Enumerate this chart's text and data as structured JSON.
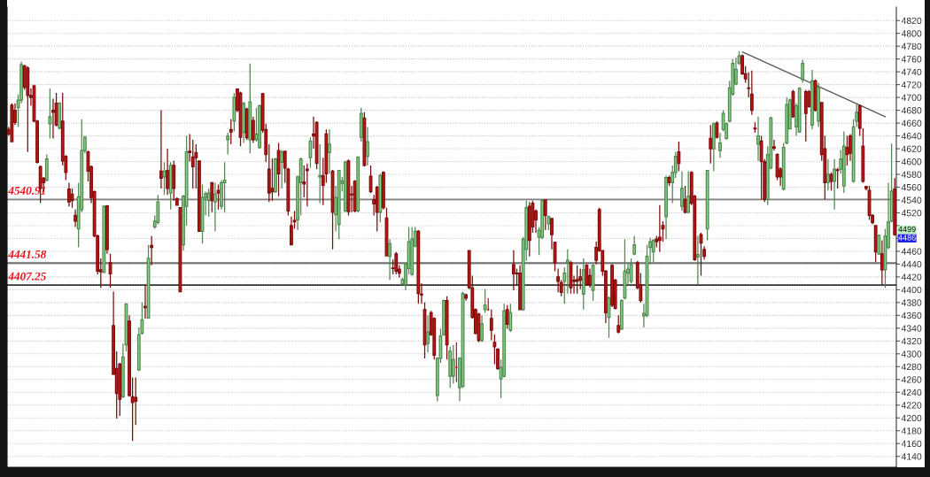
{
  "chart_data": {
    "type": "candlestick",
    "categories": [
      null,
      null,
      null,
      null,
      null,
      null,
      null,
      null,
      null,
      null,
      null,
      null,
      null,
      null,
      null,
      null,
      null,
      null,
      null,
      null,
      null,
      null,
      null,
      null,
      null,
      null,
      null,
      null,
      null,
      null,
      null,
      null,
      null,
      null,
      null,
      null,
      null,
      null,
      null,
      null,
      null,
      null,
      null,
      null,
      null,
      null,
      null,
      null,
      null,
      null,
      null,
      null,
      null,
      null,
      null,
      null,
      null,
      null,
      null,
      null,
      null,
      null,
      null,
      null,
      null,
      null,
      null,
      null,
      null,
      null,
      null,
      null,
      null,
      null,
      null,
      null,
      null,
      null,
      null,
      null,
      null,
      null,
      null,
      null,
      null,
      null,
      null,
      null,
      null,
      null,
      null,
      null,
      null,
      null,
      null,
      null,
      null,
      null,
      null,
      null,
      null,
      null,
      null,
      null,
      null,
      null,
      null,
      null,
      null,
      null,
      null,
      null,
      null,
      null,
      null,
      null,
      null,
      null,
      null,
      null,
      null,
      null,
      null,
      null,
      null,
      null,
      null,
      null,
      null,
      null,
      null,
      null,
      null,
      null,
      null,
      null,
      null,
      null,
      null,
      null,
      null,
      null,
      null,
      null,
      null,
      null,
      null,
      null,
      null,
      null,
      null,
      null,
      null,
      null,
      null,
      null,
      null,
      null,
      null,
      null,
      null,
      null,
      null,
      null,
      null,
      null,
      null,
      null,
      null,
      null,
      null,
      null,
      null,
      null,
      null,
      null,
      null,
      null,
      null,
      null,
      null,
      null,
      null,
      null,
      null,
      null,
      null,
      null,
      null,
      null,
      null,
      null,
      null,
      null,
      null,
      null,
      null,
      null,
      null,
      null,
      null,
      null,
      null,
      null,
      null,
      null,
      null,
      null,
      null,
      null,
      null,
      null,
      null,
      null,
      null,
      null,
      null,
      null,
      null,
      null,
      null,
      null,
      null,
      null,
      null,
      null,
      null,
      null,
      null,
      null,
      null,
      null,
      null,
      null,
      null,
      null,
      null,
      null,
      null,
      null,
      null,
      null,
      null,
      null,
      null,
      null,
      null,
      null,
      null,
      null,
      null,
      null,
      null,
      null,
      null,
      null,
      null,
      null,
      null,
      null,
      null,
      null,
      null,
      null,
      null,
      null,
      null,
      null,
      null,
      null,
      null,
      null,
      null,
      null,
      null,
      null,
      null,
      null,
      null,
      null
    ],
    "ohlc": [
      [
        4650,
        4654,
        4640,
        4643
      ],
      [
        4688,
        4691,
        4630,
        4631
      ],
      [
        4680,
        4691,
        4657,
        4661
      ],
      [
        4684,
        4705,
        4654,
        4696
      ],
      [
        4696,
        4756,
        4691,
        4751
      ],
      [
        4749,
        4751,
        4712,
        4716
      ],
      [
        4746,
        4749,
        4615,
        4703
      ],
      [
        4703,
        4714,
        4687,
        4700
      ],
      [
        4718,
        4720,
        4661,
        4663
      ],
      [
        4663,
        4665,
        4597,
        4599
      ],
      [
        4592,
        4594,
        4535,
        4558
      ],
      [
        4574,
        4576,
        4553,
        4567
      ],
      [
        4571,
        4611,
        4569,
        4604
      ],
      [
        4659,
        4714,
        4636,
        4670
      ],
      [
        4680,
        4698,
        4636,
        4677
      ],
      [
        4691,
        4707,
        4655,
        4657
      ],
      [
        4652,
        4693,
        4650,
        4691
      ],
      [
        4663,
        4707,
        4594,
        4601
      ],
      [
        4608,
        4610,
        4571,
        4583
      ],
      [
        4557,
        4567,
        4530,
        4537
      ],
      [
        4549,
        4558,
        4528,
        4539
      ],
      [
        4516,
        4525,
        4498,
        4507
      ],
      [
        4495,
        4567,
        4466,
        4545
      ],
      [
        4525,
        4666,
        4521,
        4617
      ],
      [
        4617,
        4640,
        4613,
        4638
      ],
      [
        4615,
        4617,
        4569,
        4585
      ],
      [
        4592,
        4594,
        4535,
        4544
      ],
      [
        4553,
        4555,
        4482,
        4484
      ],
      [
        4484,
        4486,
        4424,
        4429
      ],
      [
        4431,
        4449,
        4403,
        4428
      ],
      [
        4427,
        4532,
        4426,
        4530
      ],
      [
        4531,
        4532,
        4456,
        4463
      ],
      [
        4442,
        4456,
        4403,
        4425
      ],
      [
        4344,
        4397,
        4267,
        4268
      ],
      [
        4277,
        4304,
        4199,
        4238
      ],
      [
        4284,
        4286,
        4203,
        4229
      ],
      [
        4233,
        4316,
        4231,
        4295
      ],
      [
        4314,
        4378,
        4304,
        4378
      ],
      [
        4351,
        4360,
        4233,
        4235
      ],
      [
        4233,
        4263,
        4164,
        4224
      ],
      [
        4232,
        4263,
        4189,
        4226
      ],
      [
        4275,
        4341,
        4273,
        4330
      ],
      [
        4332,
        4380,
        4330,
        4353
      ],
      [
        4374,
        4408,
        4355,
        4372
      ],
      [
        4356,
        4470,
        4355,
        4449
      ],
      [
        4469,
        4484,
        4438,
        4466
      ],
      [
        4498,
        4516,
        4495,
        4507
      ],
      [
        4505,
        4548,
        4502,
        4537
      ],
      [
        4585,
        4680,
        4558,
        4574
      ],
      [
        4576,
        4599,
        4548,
        4585
      ],
      [
        4586,
        4620,
        4548,
        4558
      ],
      [
        4551,
        4599,
        4525,
        4594
      ],
      [
        4594,
        4601,
        4539,
        4558
      ],
      [
        4542,
        4544,
        4532,
        4532
      ],
      [
        4528,
        4528,
        4397,
        4397
      ],
      [
        4470,
        4548,
        4461,
        4546
      ],
      [
        4530,
        4640,
        4500,
        4615
      ],
      [
        4616,
        4643,
        4600,
        4614
      ],
      [
        4607,
        4634,
        4558,
        4592
      ],
      [
        4614,
        4627,
        4558,
        4606
      ],
      [
        4601,
        4601,
        4491,
        4491
      ],
      [
        4491,
        4564,
        4472,
        4544
      ],
      [
        4544,
        4553,
        4516,
        4550
      ],
      [
        4539,
        4558,
        4514,
        4551
      ],
      [
        4567,
        4567,
        4521,
        4539
      ],
      [
        4537,
        4567,
        4491,
        4549
      ],
      [
        4555,
        4564,
        4525,
        4551
      ],
      [
        4530,
        4571,
        4525,
        4567
      ],
      [
        4567,
        4599,
        4521,
        4571
      ],
      [
        4634,
        4645,
        4611,
        4640
      ],
      [
        4650,
        4666,
        4627,
        4646
      ],
      [
        4663,
        4707,
        4647,
        4700
      ],
      [
        4713,
        4714,
        4677,
        4680
      ],
      [
        4707,
        4709,
        4624,
        4638
      ],
      [
        4645,
        4693,
        4629,
        4691
      ],
      [
        4682,
        4684,
        4634,
        4637
      ],
      [
        4634,
        4753,
        4613,
        4693
      ],
      [
        4664,
        4670,
        4629,
        4634
      ],
      [
        4634,
        4684,
        4631,
        4643
      ],
      [
        4622,
        4689,
        4620,
        4687
      ],
      [
        4706,
        4707,
        4645,
        4649
      ],
      [
        4650,
        4659,
        4599,
        4611
      ],
      [
        4588,
        4627,
        4537,
        4551
      ],
      [
        4558,
        4605,
        4539,
        4553
      ],
      [
        4553,
        4606,
        4551,
        4604
      ],
      [
        4617,
        4629,
        4546,
        4581
      ],
      [
        4599,
        4618,
        4558,
        4615
      ],
      [
        4616,
        4617,
        4567,
        4590
      ],
      [
        4588,
        4590,
        4516,
        4523
      ],
      [
        4500,
        4514,
        4470,
        4470
      ],
      [
        4508,
        4523,
        4495,
        4506
      ],
      [
        4509,
        4578,
        4493,
        4576
      ],
      [
        4567,
        4606,
        4516,
        4604
      ],
      [
        4568,
        4594,
        4544,
        4565
      ],
      [
        4588,
        4597,
        4530,
        4586
      ],
      [
        4606,
        4638,
        4590,
        4632
      ],
      [
        4643,
        4670,
        4620,
        4640
      ],
      [
        4661,
        4663,
        4588,
        4597
      ],
      [
        4576,
        4627,
        4535,
        4578
      ],
      [
        4578,
        4606,
        4532,
        4563
      ],
      [
        4643,
        4650,
        4567,
        4581
      ],
      [
        4614,
        4650,
        4581,
        4627
      ],
      [
        4585,
        4587,
        4463,
        4521
      ],
      [
        4517,
        4562,
        4491,
        4544
      ],
      [
        4502,
        4587,
        4479,
        4586
      ],
      [
        4566,
        4576,
        4553,
        4570
      ],
      [
        4523,
        4601,
        4521,
        4599
      ],
      [
        4601,
        4603,
        4516,
        4522
      ],
      [
        4549,
        4562,
        4521,
        4548
      ],
      [
        4569,
        4571,
        4521,
        4523
      ],
      [
        4523,
        4608,
        4521,
        4607
      ],
      [
        4638,
        4684,
        4631,
        4675
      ],
      [
        4668,
        4677,
        4592,
        4594
      ],
      [
        4608,
        4654,
        4594,
        4631
      ],
      [
        4577,
        4594,
        4551,
        4553
      ],
      [
        4540,
        4548,
        4516,
        4534
      ],
      [
        4560,
        4562,
        4491,
        4521
      ],
      [
        4521,
        4581,
        4505,
        4578
      ],
      [
        4583,
        4585,
        4525,
        4528
      ],
      [
        4512,
        4528,
        4452,
        4453
      ],
      [
        4452,
        4479,
        4415,
        4472
      ],
      [
        4434,
        4447,
        4424,
        4433
      ],
      [
        4456,
        4459,
        4424,
        4429
      ],
      [
        4432,
        4438,
        4419,
        4426
      ],
      [
        4409,
        4419,
        4408,
        4416
      ],
      [
        4408,
        4442,
        4399,
        4440
      ],
      [
        4433,
        4498,
        4424,
        4475
      ],
      [
        4424,
        4498,
        4422,
        4479
      ],
      [
        4468,
        4498,
        4466,
        4491
      ],
      [
        4491,
        4493,
        4378,
        4394
      ],
      [
        4393,
        4410,
        4378,
        4392
      ],
      [
        4369,
        4380,
        4293,
        4314
      ],
      [
        4316,
        4360,
        4302,
        4334
      ],
      [
        4364,
        4367,
        4328,
        4330
      ],
      [
        4355,
        4357,
        4291,
        4298
      ],
      [
        4235,
        4295,
        4226,
        4293
      ],
      [
        4293,
        4339,
        4286,
        4328
      ],
      [
        4330,
        4385,
        4328,
        4383
      ],
      [
        4383,
        4390,
        4291,
        4314
      ],
      [
        4265,
        4311,
        4247,
        4304
      ],
      [
        4265,
        4314,
        4254,
        4291
      ],
      [
        4279,
        4318,
        4256,
        4279
      ],
      [
        4247,
        4295,
        4226,
        4293
      ],
      [
        4249,
        4397,
        4247,
        4394
      ],
      [
        4392,
        4394,
        4383,
        4387
      ],
      [
        4461,
        4461,
        4401,
        4403
      ],
      [
        4403,
        4422,
        4355,
        4357
      ],
      [
        4369,
        4371,
        4330,
        4332
      ],
      [
        4362,
        4364,
        4318,
        4321
      ],
      [
        4321,
        4360,
        4318,
        4347
      ],
      [
        4369,
        4401,
        4364,
        4376
      ],
      [
        4369,
        4387,
        4367,
        4369
      ],
      [
        4355,
        4369,
        4321,
        4337
      ],
      [
        4318,
        4330,
        4284,
        4311
      ],
      [
        4307,
        4309,
        4275,
        4277
      ],
      [
        4261,
        4291,
        4231,
        4279
      ],
      [
        4265,
        4378,
        4263,
        4367
      ],
      [
        4369,
        4376,
        4339,
        4346
      ],
      [
        4337,
        4378,
        4334,
        4364
      ],
      [
        4439,
        4462,
        4399,
        4425
      ],
      [
        4426,
        4433,
        4406,
        4425
      ],
      [
        4426,
        4438,
        4369,
        4369
      ],
      [
        4369,
        4482,
        4367,
        4479
      ],
      [
        4463,
        4539,
        4445,
        4528
      ],
      [
        4530,
        4537,
        4452,
        4477
      ],
      [
        4535,
        4539,
        4489,
        4498
      ],
      [
        4523,
        4525,
        4489,
        4509
      ],
      [
        4482,
        4498,
        4454,
        4493
      ],
      [
        4482,
        4541,
        4479,
        4539
      ],
      [
        4540,
        4541,
        4493,
        4516
      ],
      [
        4503,
        4516,
        4493,
        4514
      ],
      [
        4511,
        4512,
        4463,
        4486
      ],
      [
        4474,
        4475,
        4429,
        4442
      ],
      [
        4420,
        4433,
        4396,
        4413
      ],
      [
        4411,
        4415,
        4390,
        4396
      ],
      [
        4413,
        4435,
        4378,
        4426
      ],
      [
        4442,
        4463,
        4394,
        4446
      ],
      [
        4442,
        4445,
        4394,
        4403
      ],
      [
        4415,
        4422,
        4394,
        4413
      ],
      [
        4416,
        4438,
        4394,
        4413
      ],
      [
        4420,
        4433,
        4401,
        4415
      ],
      [
        4393,
        4449,
        4369,
        4431
      ],
      [
        4438,
        4440,
        4406,
        4408
      ],
      [
        4422,
        4433,
        4403,
        4408
      ],
      [
        4399,
        4440,
        4383,
        4438
      ],
      [
        4466,
        4475,
        4440,
        4446
      ],
      [
        4525,
        4528,
        4459,
        4461
      ],
      [
        4461,
        4461,
        4422,
        4429
      ],
      [
        4429,
        4431,
        4348,
        4364
      ],
      [
        4357,
        4390,
        4325,
        4387
      ],
      [
        4438,
        4440,
        4373,
        4376
      ],
      [
        4415,
        4417,
        4369,
        4371
      ],
      [
        4344,
        4360,
        4332,
        4334
      ],
      [
        4339,
        4385,
        4337,
        4383
      ],
      [
        4387,
        4479,
        4385,
        4429
      ],
      [
        4426,
        4442,
        4408,
        4432
      ],
      [
        4413,
        4449,
        4410,
        4439
      ],
      [
        4456,
        4484,
        4454,
        4470
      ],
      [
        4442,
        4445,
        4401,
        4403
      ],
      [
        4408,
        4426,
        4380,
        4383
      ],
      [
        4359,
        4378,
        4341,
        4363
      ],
      [
        4360,
        4470,
        4357,
        4452
      ],
      [
        4466,
        4481,
        4440,
        4475
      ],
      [
        4459,
        4479,
        4443,
        4477
      ],
      [
        4479,
        4484,
        4466,
        4475
      ],
      [
        4482,
        4532,
        4459,
        4477
      ],
      [
        4500,
        4507,
        4475,
        4495
      ],
      [
        4514,
        4578,
        4479,
        4575
      ],
      [
        4575,
        4578,
        4562,
        4567
      ],
      [
        4567,
        4594,
        4535,
        4583
      ],
      [
        4583,
        4615,
        4574,
        4608
      ],
      [
        4615,
        4631,
        4585,
        4597
      ],
      [
        4530,
        4585,
        4523,
        4558
      ],
      [
        4541,
        4562,
        4519,
        4521
      ],
      [
        4521,
        4585,
        4519,
        4546
      ],
      [
        4583,
        4585,
        4532,
        4535
      ],
      [
        4546,
        4548,
        4445,
        4447
      ],
      [
        4451,
        4484,
        4408,
        4455
      ],
      [
        4486,
        4489,
        4422,
        4473
      ],
      [
        4463,
        4468,
        4447,
        4452
      ],
      [
        4495,
        4587,
        4477,
        4586
      ],
      [
        4636,
        4657,
        4597,
        4620
      ],
      [
        4620,
        4661,
        4585,
        4659
      ],
      [
        4660,
        4663,
        4636,
        4638
      ],
      [
        4617,
        4645,
        4606,
        4629
      ],
      [
        4650,
        4680,
        4647,
        4675
      ],
      [
        4636,
        4661,
        4634,
        4659
      ],
      [
        4663,
        4726,
        4661,
        4715
      ],
      [
        4705,
        4760,
        4703,
        4753
      ],
      [
        4721,
        4762,
        4719,
        4744
      ],
      [
        4753,
        4772,
        4751,
        4765
      ],
      [
        4765,
        4767,
        4735,
        4737
      ],
      [
        4737,
        4749,
        4723,
        4729
      ],
      [
        4715,
        4739,
        4700,
        4714
      ],
      [
        4705,
        4742,
        4673,
        4680
      ],
      [
        4652,
        4661,
        4645,
        4651
      ],
      [
        4627,
        4670,
        4601,
        4640
      ],
      [
        4632,
        4640,
        4541,
        4600
      ],
      [
        4600,
        4604,
        4537,
        4541
      ],
      [
        4541,
        4624,
        4532,
        4611
      ],
      [
        4590,
        4670,
        4588,
        4668
      ],
      [
        4623,
        4634,
        4617,
        4621
      ],
      [
        4611,
        4613,
        4571,
        4576
      ],
      [
        4588,
        4591,
        4562,
        4576
      ],
      [
        4557,
        4629,
        4555,
        4622
      ],
      [
        4629,
        4700,
        4627,
        4689
      ],
      [
        4651,
        4698,
        4650,
        4696
      ],
      [
        4709,
        4712,
        4668,
        4670
      ],
      [
        4654,
        4691,
        4640,
        4687
      ],
      [
        4646,
        4716,
        4645,
        4714
      ],
      [
        4728,
        4759,
        4723,
        4753
      ],
      [
        4709,
        4712,
        4631,
        4675
      ],
      [
        4709,
        4712,
        4684,
        4686
      ],
      [
        4657,
        4743,
        4650,
        4726
      ],
      [
        4726,
        4728,
        4678,
        4680
      ],
      [
        4663,
        4723,
        4654,
        4716
      ],
      [
        4692,
        4693,
        4601,
        4611
      ],
      [
        4620,
        4640,
        4541,
        4567
      ],
      [
        4567,
        4604,
        4555,
        4580
      ],
      [
        4580,
        4583,
        4555,
        4569
      ],
      [
        4569,
        4604,
        4525,
        4588
      ],
      [
        4587,
        4590,
        4558,
        4586
      ],
      [
        4588,
        4618,
        4581,
        4604
      ],
      [
        4562,
        4647,
        4551,
        4624
      ],
      [
        4622,
        4640,
        4594,
        4611
      ],
      [
        4640,
        4643,
        4601,
        4613
      ],
      [
        4569,
        4666,
        4567,
        4654
      ],
      [
        4663,
        4691,
        4654,
        4677
      ],
      [
        4687,
        4689,
        4640,
        4652
      ],
      [
        4624,
        4652,
        4567,
        4569
      ],
      [
        4561,
        4562,
        4555,
        4558
      ],
      [
        4555,
        4562,
        4509,
        4516
      ],
      [
        4516,
        4518,
        4502,
        4505
      ],
      [
        4500,
        4500,
        4443,
        4459
      ],
      [
        4456,
        4486,
        4454,
        4485
      ],
      [
        4456,
        4477,
        4406,
        4431
      ],
      [
        4431,
        4495,
        4403,
        4484
      ],
      [
        4466,
        4567,
        4463,
        4506
      ],
      [
        4507,
        4628,
        4505,
        4554
      ],
      [
        4557,
        4574,
        4484,
        4486
      ]
    ],
    "colors": [
      "#c81414",
      "#c81414",
      "#c81414",
      "#84d984",
      "#84d984",
      "#c81414",
      "#c81414",
      "#c81414",
      "#c81414",
      "#c81414",
      "#c81414",
      "#c81414",
      "#84d984",
      "#84d984",
      "#c81414",
      "#c81414",
      "#84d984",
      "#c81414",
      "#c81414",
      "#c81414",
      "#c81414",
      "#c81414",
      "#84d984",
      "#84d984",
      "#84d984",
      "#c81414",
      "#c81414",
      "#c81414",
      "#c81414",
      "#c81414",
      "#84d984",
      "#c81414",
      "#c81414",
      "#c81414",
      "#c81414",
      "#c81414",
      "#84d984",
      "#84d984",
      "#c81414",
      "#c81414",
      "#c81414",
      "#84d984",
      "#84d984",
      "#c81414",
      "#84d984",
      "#c81414",
      "#84d984",
      "#84d984",
      "#c81414",
      "#84d984",
      "#c81414",
      "#84d984",
      "#c81414",
      "#c81414",
      "#c81414",
      "#84d984",
      "#84d984",
      "#c81414",
      "#c81414",
      "#c81414",
      "#c81414",
      "#84d984",
      "#84d984",
      "#84d984",
      "#c81414",
      "#84d984",
      "#c81414",
      "#84d984",
      "#84d984",
      "#84d984",
      "#c81414",
      "#84d984",
      "#c81414",
      "#c81414",
      "#84d984",
      "#c81414",
      "#84d984",
      "#c81414",
      "#84d984",
      "#84d984",
      "#c81414",
      "#c81414",
      "#c81414",
      "#c81414",
      "#84d984",
      "#c81414",
      "#84d984",
      "#c81414",
      "#c81414",
      "#c81414",
      "#c81414",
      "#84d984",
      "#84d984",
      "#c81414",
      "#c81414",
      "#84d984",
      "#c81414",
      "#c81414",
      "#84d984",
      "#c81414",
      "#c81414",
      "#84d984",
      "#c81414",
      "#84d984",
      "#84d984",
      "#84d984",
      "#84d984",
      "#c81414",
      "#c81414",
      "#c81414",
      "#84d984",
      "#84d984",
      "#c81414",
      "#84d984",
      "#c81414",
      "#c81414",
      "#c81414",
      "#84d984",
      "#c81414",
      "#c81414",
      "#84d984",
      "#c81414",
      "#c81414",
      "#c81414",
      "#84d984",
      "#84d984",
      "#84d984",
      "#84d984",
      "#84d984",
      "#c81414",
      "#c81414",
      "#c81414",
      "#84d984",
      "#c81414",
      "#c81414",
      "#84d984",
      "#84d984",
      "#84d984",
      "#c81414",
      "#84d984",
      "#84d984",
      "#c81414",
      "#84d984",
      "#84d984",
      "#c81414",
      "#c81414",
      "#c81414",
      "#c81414",
      "#c81414",
      "#84d984",
      "#84d984",
      "#c81414",
      "#c81414",
      "#c81414",
      "#c81414",
      "#84d984",
      "#84d984",
      "#c81414",
      "#84d984",
      "#c81414",
      "#c81414",
      "#c81414",
      "#84d984",
      "#84d984",
      "#c81414",
      "#c81414",
      "#c81414",
      "#84d984",
      "#84d984",
      "#c81414",
      "#84d984",
      "#c81414",
      "#c81414",
      "#c81414",
      "#c81414",
      "#84d984",
      "#84d984",
      "#c81414",
      "#c81414",
      "#c81414",
      "#c81414",
      "#84d984",
      "#c81414",
      "#c81414",
      "#84d984",
      "#c81414",
      "#c81414",
      "#c81414",
      "#c81414",
      "#84d984",
      "#c81414",
      "#c81414",
      "#c81414",
      "#84d984",
      "#84d984",
      "#84d984",
      "#84d984",
      "#84d984",
      "#c81414",
      "#c81414",
      "#84d984",
      "#84d984",
      "#84d984",
      "#84d984",
      "#c81414",
      "#c81414",
      "#c81414",
      "#84d984",
      "#c81414",
      "#84d984",
      "#84d984",
      "#c81414",
      "#84d984",
      "#c81414",
      "#84d984",
      "#c81414",
      "#c81414",
      "#84d984",
      "#c81414",
      "#c81414",
      "#84d984",
      "#c81414",
      "#84d984",
      "#c81414",
      "#84d984",
      "#84d984",
      "#84d984",
      "#84d984",
      "#84d984",
      "#84d984",
      "#84d984",
      "#c81414",
      "#c81414",
      "#c81414",
      "#c81414",
      "#c81414",
      "#84d984",
      "#c81414",
      "#c81414",
      "#84d984",
      "#84d984",
      "#c81414",
      "#c81414",
      "#c81414",
      "#84d984",
      "#84d984",
      "#84d984",
      "#c81414",
      "#84d984",
      "#84d984",
      "#84d984",
      "#c81414",
      "#c81414",
      "#84d984",
      "#c81414",
      "#84d984",
      "#c81414",
      "#c81414",
      "#84d984",
      "#c81414",
      "#84d984",
      "#c81414",
      "#84d984",
      "#84d984",
      "#c81414",
      "#c81414",
      "#84d984",
      "#84d984",
      "#c81414",
      "#c81414",
      "#c81414",
      "#c81414",
      "#c81414",
      "#c81414",
      "#84d984",
      "#c81414",
      "#84d984",
      "#84d984",
      "#84d984",
      "#c81414"
    ],
    "series": [
      {
        "type": "line",
        "color": "#5a5a5a",
        "values": [
          null,
          null,
          null,
          null,
          null,
          null,
          null,
          null,
          null,
          null,
          null,
          null,
          null,
          null,
          null,
          null,
          null,
          null,
          null,
          null,
          null,
          null,
          null,
          null,
          null,
          null,
          null,
          null,
          null,
          null,
          null,
          null,
          null,
          null,
          null,
          null,
          null,
          null,
          null,
          null,
          null,
          null,
          null,
          null,
          null,
          null,
          null,
          null,
          null,
          null,
          null,
          null,
          null,
          null,
          null,
          null,
          null,
          null,
          null,
          null,
          null,
          null,
          null,
          null,
          null,
          null,
          null,
          null,
          null,
          null,
          null,
          null,
          null,
          null,
          null,
          null,
          null,
          null,
          null,
          null,
          null,
          null,
          null,
          null,
          null,
          null,
          null,
          null,
          null,
          null,
          null,
          null,
          null,
          null,
          null,
          null,
          null,
          null,
          null,
          null,
          null,
          null,
          null,
          null,
          null,
          null,
          null,
          null,
          null,
          null,
          null,
          null,
          null,
          null,
          null,
          null,
          null,
          null,
          null,
          null,
          null,
          null,
          null,
          null,
          null,
          null,
          null,
          null,
          null,
          null,
          null,
          null,
          null,
          null,
          null,
          null,
          null,
          null,
          null,
          null,
          null,
          null,
          null,
          null,
          null,
          null,
          null,
          null,
          null,
          null,
          null,
          null,
          null,
          null,
          null,
          null,
          null,
          null,
          null,
          null,
          null,
          null,
          null,
          null,
          null,
          null,
          null,
          null,
          null,
          null,
          null,
          null,
          null,
          null,
          null,
          null,
          null,
          null,
          null,
          null,
          null,
          null,
          null,
          null,
          null,
          null,
          null,
          null,
          null,
          null,
          null,
          null,
          null,
          null,
          null,
          null,
          null,
          null,
          null,
          null,
          null,
          null,
          null,
          null,
          null,
          null,
          null,
          null,
          null,
          null,
          null,
          null,
          null,
          null,
          null,
          null,
          null,
          null,
          null,
          null,
          null,
          null,
          null,
          null,
          null,
          null,
          null,
          null,
          null,
          null,
          null,
          4771,
          null,
          null,
          null,
          null,
          null,
          null,
          null,
          null,
          null,
          null,
          null,
          null,
          null,
          null,
          null,
          null,
          null,
          null,
          null,
          null,
          null,
          null,
          null,
          null,
          null,
          null,
          null,
          null,
          null,
          null,
          null,
          null,
          null,
          null,
          null,
          null,
          null,
          null,
          null,
          null,
          null,
          null,
          null,
          null,
          4670,
          null,
          null,
          null
        ]
      }
    ],
    "ref_lines": [
      {
        "axis": "y",
        "value": 4540.91,
        "label": "4540.91",
        "color": "#808080"
      },
      {
        "axis": "y",
        "value": 4441.58,
        "label": "4441.58",
        "color": "#6e6e6e"
      },
      {
        "axis": "y",
        "value": 4407.25,
        "label": "4407.25",
        "color": "#333333"
      }
    ],
    "annotations": [
      "4499",
      "4486"
    ],
    "ylim": [
      4123,
      4841
    ],
    "yticks": [
      4140,
      4160,
      4180,
      4200,
      4220,
      4240,
      4260,
      4280,
      4300,
      4320,
      4340,
      4360,
      4380,
      4400,
      4420,
      4440,
      4460,
      {
        "value": 4480,
        "label": null
      },
      {
        "value": 4500,
        "label": null
      },
      4520,
      4540,
      4560,
      4580,
      4600,
      4620,
      4640,
      4660,
      4680,
      4700,
      4720,
      4740,
      4760,
      4780,
      4800,
      4820
    ],
    "grid": "y",
    "tick_labels": "y"
  }
}
